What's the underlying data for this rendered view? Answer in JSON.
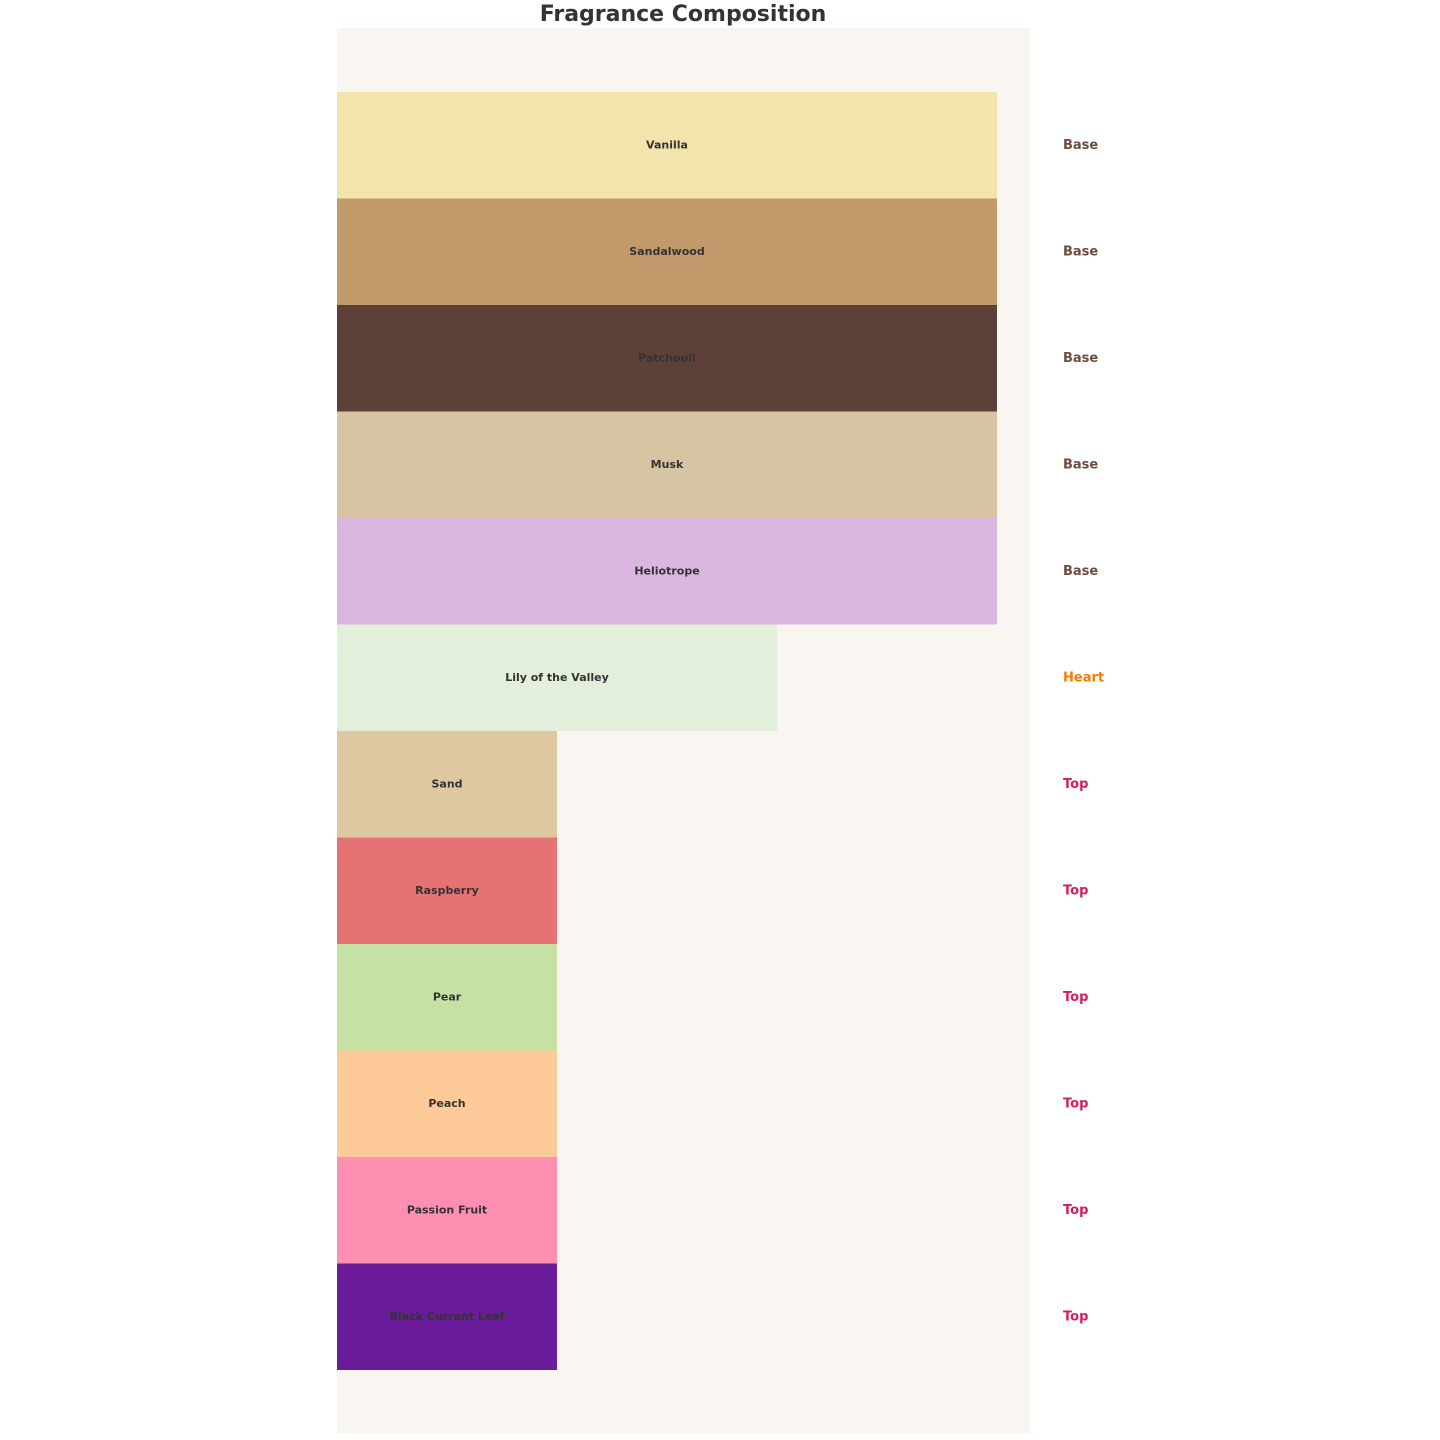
{
  "chart_data": {
    "type": "bar",
    "orientation": "horizontal",
    "title": "Fragrance Composition",
    "categories": [
      "Vanilla",
      "Sandalwood",
      "Patchouli",
      "Musk",
      "Heliotrope",
      "Lily of the Valley",
      "Sand",
      "Raspberry",
      "Pear",
      "Peach",
      "Passion Fruit",
      "Black Currant Leaf"
    ],
    "values": [
      3,
      3,
      3,
      3,
      3,
      2,
      1,
      1,
      1,
      1,
      1,
      1
    ],
    "colors": [
      "#F3E4AD",
      "#C19A6B",
      "#5D4037",
      "#D7C4A3",
      "#D9B7DE",
      "#E2EFDA",
      "#DDC8A2",
      "#E57373",
      "#C5E1A5",
      "#FFCA99",
      "#FF8FB1",
      "#6A1B9A"
    ],
    "note_types": [
      "Base",
      "Base",
      "Base",
      "Base",
      "Base",
      "Heart",
      "Top",
      "Top",
      "Top",
      "Top",
      "Top",
      "Top"
    ],
    "note_colors": {
      "Base": "#6D4C41",
      "Heart": "#F57C00",
      "Top": "#D81B60"
    },
    "xlim": [
      0,
      3.15
    ],
    "background": "#F9F6F1"
  }
}
